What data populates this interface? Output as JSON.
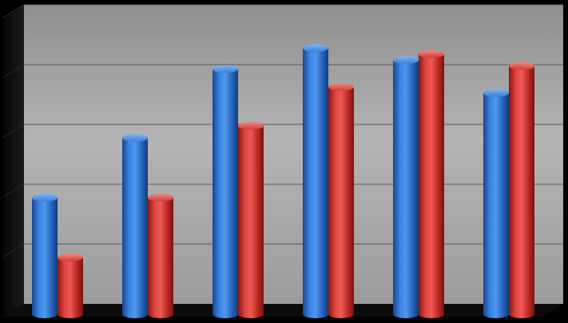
{
  "chart_data": {
    "type": "bar",
    "title": "",
    "xlabel": "",
    "ylabel": "",
    "categories": [
      "",
      "",
      "",
      "",
      "",
      ""
    ],
    "ylim": [
      0,
      5
    ],
    "grid": true,
    "legend": "none",
    "style": "3d-cylinder",
    "series": [
      {
        "color": "#2f74d0",
        "values": [
          1.95,
          2.95,
          4.1,
          4.45,
          4.25,
          3.7
        ]
      },
      {
        "color": "#d93631",
        "values": [
          0.95,
          1.95,
          3.15,
          3.8,
          4.35,
          4.15
        ]
      }
    ]
  },
  "colors": {
    "background": "#000000",
    "plot_wall": "#a6a6a6",
    "side_wall": "#141414",
    "floor": "#0c0c0c",
    "gridline": "#5a5a5a"
  }
}
